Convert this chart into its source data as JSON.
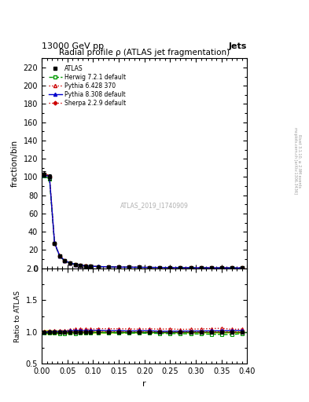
{
  "title": "Radial profile ρ (ATLAS jet fragmentation)",
  "header_left": "13000 GeV pp",
  "header_right": "Jets",
  "xlabel": "r",
  "ylabel_main": "fraction/bin",
  "ylabel_ratio": "Ratio to ATLAS",
  "right_label_top": "Rivet 3.1.10, ≥ 2.9M events",
  "right_label_bot": "mcplots.cern.ch [arXiv:1306.3436]",
  "watermark": "ATLAS_2019_I1740909",
  "ylim_main": [
    0,
    230
  ],
  "ylim_ratio": [
    0.5,
    2.0
  ],
  "yticks_main": [
    0,
    20,
    40,
    60,
    80,
    100,
    120,
    140,
    160,
    180,
    200,
    220
  ],
  "yticks_ratio": [
    0.5,
    1.0,
    1.5,
    2.0
  ],
  "xlim": [
    0.0,
    0.4
  ],
  "r_values": [
    0.005,
    0.015,
    0.025,
    0.035,
    0.045,
    0.055,
    0.065,
    0.075,
    0.085,
    0.095,
    0.11,
    0.13,
    0.15,
    0.17,
    0.19,
    0.21,
    0.23,
    0.25,
    0.27,
    0.29,
    0.31,
    0.33,
    0.35,
    0.37,
    0.39
  ],
  "atlas_values": [
    103.0,
    100.0,
    27.5,
    13.5,
    8.2,
    5.8,
    4.3,
    3.3,
    2.7,
    2.3,
    1.9,
    1.6,
    1.4,
    1.25,
    1.1,
    1.0,
    0.9,
    0.82,
    0.75,
    0.68,
    0.62,
    0.57,
    0.52,
    0.48,
    0.44
  ],
  "atlas_errors": [
    3.0,
    3.0,
    0.8,
    0.4,
    0.2,
    0.15,
    0.1,
    0.08,
    0.07,
    0.06,
    0.05,
    0.04,
    0.04,
    0.03,
    0.03,
    0.03,
    0.02,
    0.02,
    0.02,
    0.02,
    0.02,
    0.02,
    0.02,
    0.01,
    0.01
  ],
  "herwig_values": [
    101.0,
    98.0,
    27.0,
    13.2,
    8.0,
    5.7,
    4.2,
    3.25,
    2.65,
    2.28,
    1.88,
    1.58,
    1.38,
    1.23,
    1.08,
    0.98,
    0.88,
    0.8,
    0.73,
    0.66,
    0.6,
    0.55,
    0.5,
    0.46,
    0.43
  ],
  "pythia6_values": [
    104.0,
    101.5,
    28.0,
    13.8,
    8.4,
    6.0,
    4.5,
    3.45,
    2.82,
    2.4,
    2.0,
    1.68,
    1.47,
    1.31,
    1.15,
    1.05,
    0.94,
    0.86,
    0.78,
    0.71,
    0.65,
    0.6,
    0.55,
    0.5,
    0.46
  ],
  "pythia8_values": [
    102.5,
    100.5,
    27.8,
    13.6,
    8.3,
    5.9,
    4.4,
    3.38,
    2.75,
    2.35,
    1.95,
    1.63,
    1.43,
    1.27,
    1.12,
    1.02,
    0.91,
    0.83,
    0.76,
    0.69,
    0.63,
    0.58,
    0.53,
    0.49,
    0.45
  ],
  "sherpa_values": [
    103.0,
    100.5,
    27.6,
    13.5,
    8.2,
    5.85,
    4.35,
    3.35,
    2.72,
    2.32,
    1.92,
    1.61,
    1.41,
    1.26,
    1.11,
    1.01,
    0.9,
    0.82,
    0.75,
    0.68,
    0.62,
    0.57,
    0.52,
    0.48,
    0.44
  ],
  "herwig_ratio": [
    0.98,
    0.98,
    0.982,
    0.978,
    0.976,
    0.983,
    0.977,
    0.985,
    0.981,
    0.991,
    0.989,
    0.988,
    0.986,
    0.984,
    0.982,
    0.98,
    0.978,
    0.976,
    0.973,
    0.971,
    0.968,
    0.965,
    0.962,
    0.958,
    0.977
  ],
  "pythia6_ratio": [
    1.01,
    1.015,
    1.018,
    1.022,
    1.024,
    1.034,
    1.047,
    1.045,
    1.044,
    1.043,
    1.053,
    1.05,
    1.05,
    1.048,
    1.045,
    1.05,
    1.044,
    1.049,
    1.04,
    1.044,
    1.048,
    1.053,
    1.058,
    1.042,
    1.045
  ],
  "pythia8_ratio": [
    0.995,
    1.005,
    1.011,
    1.007,
    1.012,
    1.017,
    1.023,
    1.024,
    1.019,
    1.022,
    1.026,
    1.019,
    1.021,
    1.016,
    1.018,
    1.02,
    1.011,
    1.012,
    1.013,
    1.015,
    1.016,
    1.018,
    1.019,
    1.021,
    1.023
  ],
  "sherpa_ratio": [
    1.0,
    1.005,
    1.004,
    1.0,
    1.0,
    1.009,
    1.012,
    1.015,
    1.007,
    1.009,
    1.011,
    1.006,
    1.007,
    1.008,
    1.009,
    1.01,
    1.0,
    1.0,
    1.0,
    1.0,
    1.0,
    1.0,
    1.0,
    1.0,
    1.0
  ],
  "atlas_band_lo": [
    0.97,
    0.97,
    0.972,
    0.974,
    0.976,
    0.978,
    0.98,
    0.981,
    0.982,
    0.983,
    0.984,
    0.985,
    0.986,
    0.987,
    0.987,
    0.988,
    0.988,
    0.989,
    0.989,
    0.989,
    0.99,
    0.99,
    0.99,
    0.99,
    0.985
  ],
  "atlas_band_hi": [
    1.03,
    1.03,
    1.028,
    1.026,
    1.024,
    1.022,
    1.02,
    1.019,
    1.018,
    1.017,
    1.016,
    1.015,
    1.014,
    1.013,
    1.013,
    1.012,
    1.012,
    1.011,
    1.011,
    1.011,
    1.01,
    1.01,
    1.01,
    1.01,
    1.015
  ],
  "color_atlas": "#000000",
  "color_herwig": "#009900",
  "color_pythia6": "#cc0000",
  "color_pythia8": "#0000cc",
  "color_sherpa": "#cc0000",
  "color_band_fill": "#ddff44",
  "color_band_line": "#006600",
  "legend_labels": [
    "ATLAS",
    "Herwig 7.2.1 default",
    "Pythia 6.428 370",
    "Pythia 8.308 default",
    "Sherpa 2.2.9 default"
  ]
}
